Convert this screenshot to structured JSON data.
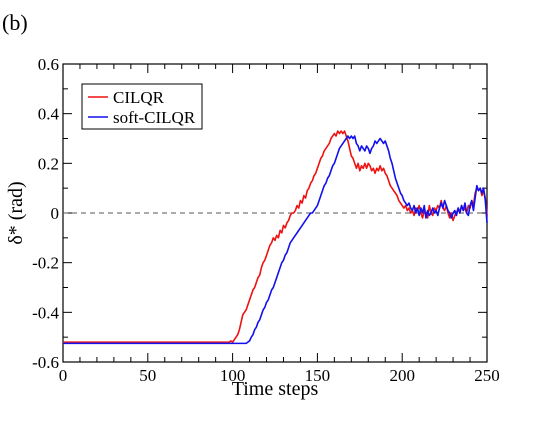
{
  "panel_label": "(b)",
  "chart_data": {
    "type": "line",
    "title": "",
    "xlabel": "Time steps",
    "ylabel": "δ* (rad)",
    "xlim": [
      0,
      250
    ],
    "ylim": [
      -0.6,
      0.6
    ],
    "x_ticks": [
      0,
      50,
      100,
      150,
      200,
      250
    ],
    "y_ticks": [
      -0.6,
      -0.4,
      -0.2,
      0,
      0.2,
      0.4,
      0.6
    ],
    "x_tick_labels": [
      "0",
      "50",
      "100",
      "150",
      "200",
      "250"
    ],
    "y_tick_labels": [
      "-0.6",
      "-0.4",
      "-0.2",
      "0",
      "0.2",
      "0.4",
      "0.6"
    ],
    "grid": false,
    "legend_position": "top-left",
    "reference_line": {
      "y": 0,
      "style": "dashed",
      "color": "#555555"
    },
    "series": [
      {
        "name": "CILQR",
        "color": "#ee1111",
        "points": [
          [
            0,
            -0.52
          ],
          [
            50,
            -0.52
          ],
          [
            98,
            -0.52
          ],
          [
            99,
            -0.515
          ],
          [
            100,
            -0.52
          ],
          [
            101,
            -0.51
          ],
          [
            102,
            -0.5
          ],
          [
            103,
            -0.49
          ],
          [
            104,
            -0.47
          ],
          [
            105,
            -0.44
          ],
          [
            106,
            -0.41
          ],
          [
            107,
            -0.4
          ],
          [
            108,
            -0.39
          ],
          [
            109,
            -0.37
          ],
          [
            110,
            -0.35
          ],
          [
            111,
            -0.33
          ],
          [
            112,
            -0.31
          ],
          [
            113,
            -0.3
          ],
          [
            114,
            -0.28
          ],
          [
            115,
            -0.26
          ],
          [
            116,
            -0.25
          ],
          [
            117,
            -0.22
          ],
          [
            118,
            -0.2
          ],
          [
            119,
            -0.19
          ],
          [
            120,
            -0.17
          ],
          [
            121,
            -0.15
          ],
          [
            122,
            -0.13
          ],
          [
            123,
            -0.12
          ],
          [
            124,
            -0.1
          ],
          [
            125,
            -0.11
          ],
          [
            126,
            -0.09
          ],
          [
            127,
            -0.1
          ],
          [
            128,
            -0.07
          ],
          [
            129,
            -0.08
          ],
          [
            130,
            -0.05
          ],
          [
            131,
            -0.06
          ],
          [
            132,
            -0.04
          ],
          [
            133,
            -0.03
          ],
          [
            134,
            -0.01
          ],
          [
            135,
            0.0
          ],
          [
            136,
            0.0
          ],
          [
            137,
            0.01
          ],
          [
            138,
            0.03
          ],
          [
            139,
            0.02
          ],
          [
            140,
            0.05
          ],
          [
            141,
            0.04
          ],
          [
            142,
            0.07
          ],
          [
            143,
            0.06
          ],
          [
            144,
            0.09
          ],
          [
            145,
            0.1
          ],
          [
            146,
            0.12
          ],
          [
            147,
            0.13
          ],
          [
            148,
            0.15
          ],
          [
            149,
            0.16
          ],
          [
            150,
            0.18
          ],
          [
            151,
            0.2
          ],
          [
            152,
            0.22
          ],
          [
            153,
            0.23
          ],
          [
            154,
            0.25
          ],
          [
            155,
            0.26
          ],
          [
            156,
            0.27
          ],
          [
            157,
            0.28
          ],
          [
            158,
            0.3
          ],
          [
            159,
            0.31
          ],
          [
            160,
            0.32
          ],
          [
            161,
            0.31
          ],
          [
            162,
            0.33
          ],
          [
            163,
            0.32
          ],
          [
            164,
            0.33
          ],
          [
            165,
            0.32
          ],
          [
            166,
            0.33
          ],
          [
            167,
            0.31
          ],
          [
            168,
            0.29
          ],
          [
            169,
            0.26
          ],
          [
            170,
            0.23
          ],
          [
            171,
            0.22
          ],
          [
            172,
            0.2
          ],
          [
            173,
            0.18
          ],
          [
            174,
            0.2
          ],
          [
            175,
            0.17
          ],
          [
            176,
            0.19
          ],
          [
            177,
            0.18
          ],
          [
            178,
            0.2
          ],
          [
            179,
            0.18
          ],
          [
            180,
            0.2
          ],
          [
            181,
            0.19
          ],
          [
            182,
            0.17
          ],
          [
            183,
            0.18
          ],
          [
            184,
            0.16
          ],
          [
            185,
            0.18
          ],
          [
            186,
            0.17
          ],
          [
            187,
            0.19
          ],
          [
            188,
            0.17
          ],
          [
            189,
            0.18
          ],
          [
            190,
            0.16
          ],
          [
            191,
            0.15
          ],
          [
            192,
            0.13
          ],
          [
            193,
            0.11
          ],
          [
            194,
            0.1
          ],
          [
            195,
            0.09
          ],
          [
            196,
            0.08
          ],
          [
            197,
            0.07
          ],
          [
            198,
            0.05
          ],
          [
            199,
            0.04
          ],
          [
            200,
            0.03
          ],
          [
            201,
            0.02
          ],
          [
            202,
            0.03
          ],
          [
            203,
            0.01
          ],
          [
            204,
            0.02
          ],
          [
            205,
            0.0
          ],
          [
            206,
            0.01
          ],
          [
            207,
            -0.01
          ],
          [
            208,
            0.02
          ],
          [
            209,
            0.01
          ],
          [
            210,
            0.03
          ],
          [
            211,
            0.0
          ],
          [
            212,
            -0.02
          ],
          [
            213,
            0.01
          ],
          [
            214,
            0.0
          ],
          [
            215,
            -0.02
          ],
          [
            216,
            0.03
          ],
          [
            217,
            0.0
          ],
          [
            218,
            -0.01
          ],
          [
            219,
            0.02
          ],
          [
            220,
            0.01
          ],
          [
            221,
            0.03
          ],
          [
            222,
            0.02
          ],
          [
            223,
            0.05
          ],
          [
            224,
            0.02
          ],
          [
            225,
            0.01
          ],
          [
            226,
            0.03
          ],
          [
            227,
            0.0
          ],
          [
            228,
            -0.02
          ],
          [
            229,
            0.0
          ],
          [
            230,
            -0.03
          ],
          [
            231,
            -0.01
          ],
          [
            232,
            0.0
          ],
          [
            233,
            0.02
          ],
          [
            234,
            0.0
          ],
          [
            235,
            0.03
          ],
          [
            236,
            0.01
          ],
          [
            237,
            0.02
          ],
          [
            238,
            0.0
          ],
          [
            239,
            0.03
          ],
          [
            240,
            0.02
          ],
          [
            241,
            0.05
          ],
          [
            242,
            0.03
          ],
          [
            243,
            0.08
          ],
          [
            244,
            0.1
          ],
          [
            245,
            0.09
          ],
          [
            246,
            0.1
          ],
          [
            247,
            0.07
          ],
          [
            248,
            0.09
          ],
          [
            249,
            0.06
          ],
          [
            250,
            -0.01
          ]
        ]
      },
      {
        "name": "soft-CILQR",
        "color": "#1111ee",
        "points": [
          [
            0,
            -0.525
          ],
          [
            50,
            -0.525
          ],
          [
            100,
            -0.525
          ],
          [
            108,
            -0.525
          ],
          [
            109,
            -0.52
          ],
          [
            110,
            -0.515
          ],
          [
            111,
            -0.5
          ],
          [
            112,
            -0.49
          ],
          [
            113,
            -0.47
          ],
          [
            114,
            -0.46
          ],
          [
            115,
            -0.44
          ],
          [
            116,
            -0.43
          ],
          [
            117,
            -0.41
          ],
          [
            118,
            -0.39
          ],
          [
            119,
            -0.38
          ],
          [
            120,
            -0.36
          ],
          [
            121,
            -0.35
          ],
          [
            122,
            -0.33
          ],
          [
            123,
            -0.31
          ],
          [
            124,
            -0.3
          ],
          [
            125,
            -0.28
          ],
          [
            126,
            -0.26
          ],
          [
            127,
            -0.24
          ],
          [
            128,
            -0.22
          ],
          [
            129,
            -0.2
          ],
          [
            130,
            -0.19
          ],
          [
            131,
            -0.17
          ],
          [
            132,
            -0.16
          ],
          [
            133,
            -0.14
          ],
          [
            134,
            -0.12
          ],
          [
            135,
            -0.11
          ],
          [
            136,
            -0.1
          ],
          [
            137,
            -0.09
          ],
          [
            138,
            -0.08
          ],
          [
            139,
            -0.07
          ],
          [
            140,
            -0.06
          ],
          [
            141,
            -0.05
          ],
          [
            142,
            -0.04
          ],
          [
            143,
            -0.03
          ],
          [
            144,
            -0.02
          ],
          [
            145,
            -0.01
          ],
          [
            146,
            0.0
          ],
          [
            147,
            0.0
          ],
          [
            148,
            0.01
          ],
          [
            149,
            0.02
          ],
          [
            150,
            0.03
          ],
          [
            151,
            0.05
          ],
          [
            152,
            0.07
          ],
          [
            153,
            0.09
          ],
          [
            154,
            0.11
          ],
          [
            155,
            0.12
          ],
          [
            156,
            0.14
          ],
          [
            157,
            0.15
          ],
          [
            158,
            0.17
          ],
          [
            159,
            0.19
          ],
          [
            160,
            0.2
          ],
          [
            161,
            0.22
          ],
          [
            162,
            0.24
          ],
          [
            163,
            0.26
          ],
          [
            164,
            0.27
          ],
          [
            165,
            0.28
          ],
          [
            166,
            0.29
          ],
          [
            167,
            0.3
          ],
          [
            168,
            0.31
          ],
          [
            169,
            0.3
          ],
          [
            170,
            0.31
          ],
          [
            171,
            0.3
          ],
          [
            172,
            0.31
          ],
          [
            173,
            0.28
          ],
          [
            174,
            0.27
          ],
          [
            175,
            0.25
          ],
          [
            176,
            0.27
          ],
          [
            177,
            0.26
          ],
          [
            178,
            0.25
          ],
          [
            179,
            0.27
          ],
          [
            180,
            0.26
          ],
          [
            181,
            0.24
          ],
          [
            182,
            0.26
          ],
          [
            183,
            0.27
          ],
          [
            184,
            0.29
          ],
          [
            185,
            0.28
          ],
          [
            186,
            0.29
          ],
          [
            187,
            0.3
          ],
          [
            188,
            0.29
          ],
          [
            189,
            0.28
          ],
          [
            190,
            0.29
          ],
          [
            191,
            0.27
          ],
          [
            192,
            0.25
          ],
          [
            193,
            0.22
          ],
          [
            194,
            0.2
          ],
          [
            195,
            0.17
          ],
          [
            196,
            0.14
          ],
          [
            197,
            0.12
          ],
          [
            198,
            0.1
          ],
          [
            199,
            0.08
          ],
          [
            200,
            0.07
          ],
          [
            201,
            0.05
          ],
          [
            202,
            0.04
          ],
          [
            203,
            0.03
          ],
          [
            204,
            0.04
          ],
          [
            205,
            0.02
          ],
          [
            206,
            0.01
          ],
          [
            207,
            0.03
          ],
          [
            208,
            0.0
          ],
          [
            209,
            0.02
          ],
          [
            210,
            -0.01
          ],
          [
            211,
            0.02
          ],
          [
            212,
            0.0
          ],
          [
            213,
            0.03
          ],
          [
            214,
            -0.02
          ],
          [
            215,
            0.01
          ],
          [
            216,
            -0.01
          ],
          [
            217,
            0.0
          ],
          [
            218,
            0.02
          ],
          [
            219,
            0.0
          ],
          [
            220,
            0.01
          ],
          [
            221,
            -0.01
          ],
          [
            222,
            0.02
          ],
          [
            223,
            0.04
          ],
          [
            224,
            0.02
          ],
          [
            225,
            0.05
          ],
          [
            226,
            0.03
          ],
          [
            227,
            0.01
          ],
          [
            228,
            0.0
          ],
          [
            229,
            -0.02
          ],
          [
            230,
            0.0
          ],
          [
            231,
            0.01
          ],
          [
            232,
            -0.01
          ],
          [
            233,
            0.02
          ],
          [
            234,
            0.0
          ],
          [
            235,
            0.03
          ],
          [
            236,
            0.01
          ],
          [
            237,
            0.04
          ],
          [
            238,
            0.0
          ],
          [
            239,
            -0.01
          ],
          [
            240,
            0.03
          ],
          [
            241,
            0.05
          ],
          [
            242,
            0.01
          ],
          [
            243,
            0.06
          ],
          [
            244,
            0.11
          ],
          [
            245,
            0.09
          ],
          [
            246,
            0.1
          ],
          [
            247,
            0.08
          ],
          [
            248,
            0.1
          ],
          [
            249,
            0.05
          ],
          [
            250,
            -0.04
          ]
        ]
      }
    ]
  }
}
